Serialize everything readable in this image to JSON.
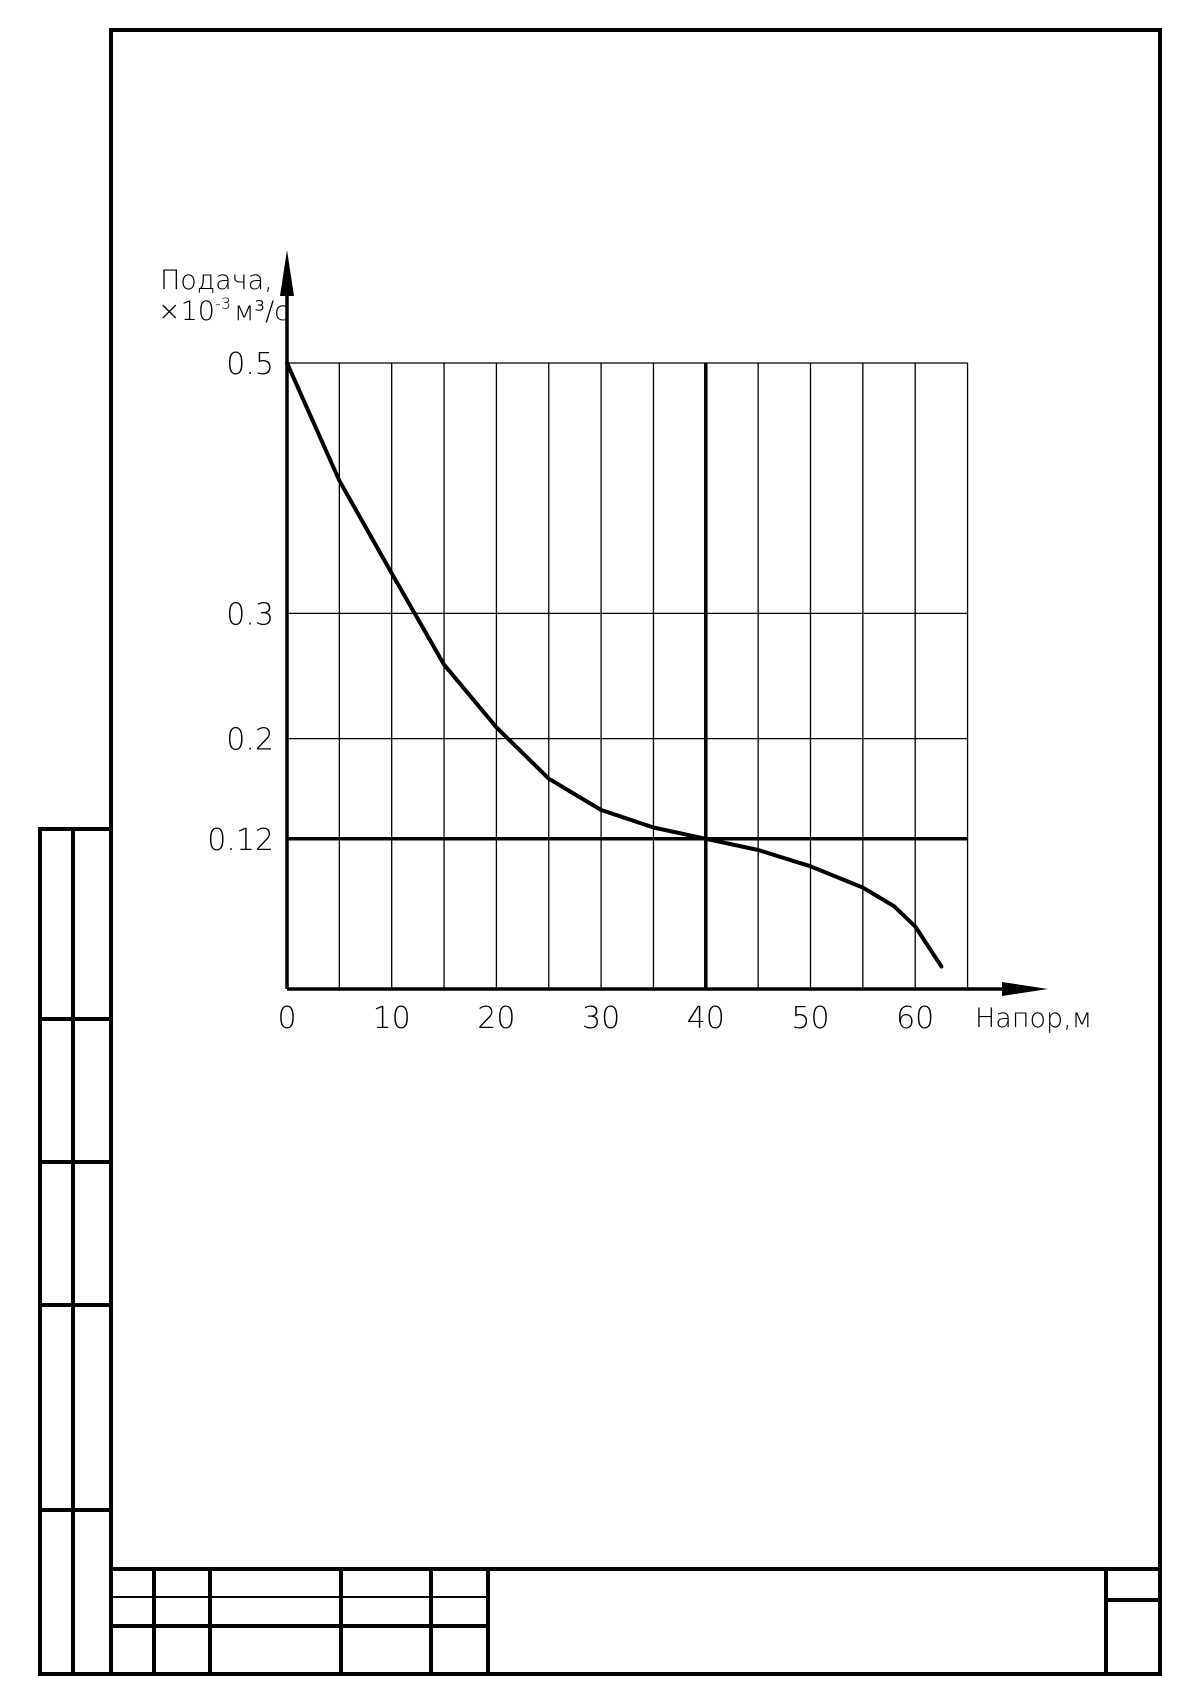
{
  "chart_data": {
    "type": "line",
    "ylabel_line1": "Подача,",
    "ylabel_line2_prefix": "×10",
    "ylabel_line2_exp": "-3",
    "ylabel_line2_unit": "м³/с",
    "xlabel": "Напор,м",
    "x_ticks": [
      "0",
      "10",
      "20",
      "30",
      "40",
      "50",
      "60"
    ],
    "y_ticks": [
      "0.5",
      "0.3",
      "0.2",
      "0.12"
    ],
    "y_tick_values": [
      0.5,
      0.3,
      0.2,
      0.12
    ],
    "xlim": [
      0,
      65
    ],
    "ylim": [
      0,
      0.5
    ],
    "grid": true,
    "highlight": {
      "x": 40,
      "y": 0.12
    },
    "series": [
      {
        "x": [
          0,
          5,
          10,
          15,
          20,
          25,
          30,
          35,
          40,
          45,
          50,
          55,
          58,
          60,
          62.5
        ],
        "values": [
          0.5,
          0.406,
          0.332,
          0.259,
          0.209,
          0.168,
          0.143,
          0.129,
          0.12,
          0.111,
          0.098,
          0.081,
          0.066,
          0.05,
          0.018
        ]
      }
    ]
  }
}
